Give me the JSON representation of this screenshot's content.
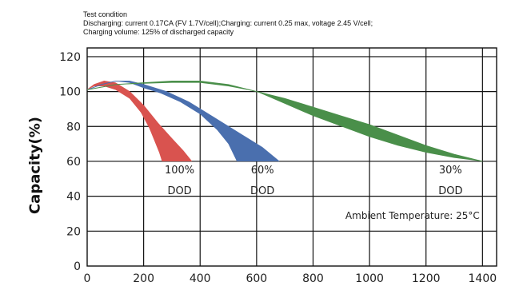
{
  "test_condition": {
    "title": "Test condition",
    "line1": "Discharging: current 0.17CA (FV 1.7V/cell);Charging: current 0.25 max, voltage 2.45 V/cell;",
    "line2": "Charging volume: 125% of discharged capacity"
  },
  "chart_data": {
    "type": "area",
    "ylabel": "Capacity(%)",
    "xlabel": "",
    "xlim": [
      0,
      1450
    ],
    "ylim": [
      0,
      125
    ],
    "xticks": [
      0,
      200,
      400,
      600,
      800,
      1000,
      1200,
      1400
    ],
    "yticks": [
      0,
      20,
      40,
      60,
      80,
      100,
      120
    ],
    "grid": true,
    "annotation": "Ambient Temperature: 25°C",
    "series": [
      {
        "name": "100% DOD",
        "label_top": "100%",
        "label_bottom": "DOD",
        "color": "#d9534f",
        "upper": [
          [
            0,
            101
          ],
          [
            25,
            104
          ],
          [
            60,
            106
          ],
          [
            100,
            105
          ],
          [
            150,
            100
          ],
          [
            200,
            92
          ],
          [
            250,
            82
          ],
          [
            300,
            73
          ],
          [
            340,
            66
          ],
          [
            370,
            60
          ]
        ],
        "lower": [
          [
            0,
            101
          ],
          [
            25,
            103
          ],
          [
            60,
            103
          ],
          [
            100,
            101
          ],
          [
            150,
            96
          ],
          [
            190,
            88
          ],
          [
            220,
            79
          ],
          [
            240,
            71
          ],
          [
            255,
            65
          ],
          [
            265,
            60
          ]
        ]
      },
      {
        "name": "60% DOD",
        "label_top": "60%",
        "label_bottom": "DOD",
        "color": "#4a6fae",
        "upper": [
          [
            0,
            101
          ],
          [
            50,
            104
          ],
          [
            100,
            106
          ],
          [
            150,
            106
          ],
          [
            200,
            104
          ],
          [
            280,
            100
          ],
          [
            360,
            94
          ],
          [
            450,
            85
          ],
          [
            540,
            76
          ],
          [
            620,
            68
          ],
          [
            680,
            60
          ]
        ],
        "lower": [
          [
            0,
            101
          ],
          [
            50,
            104
          ],
          [
            100,
            106
          ],
          [
            150,
            105
          ],
          [
            200,
            102
          ],
          [
            260,
            99
          ],
          [
            330,
            94
          ],
          [
            400,
            87
          ],
          [
            460,
            78
          ],
          [
            500,
            70
          ],
          [
            530,
            60
          ]
        ]
      },
      {
        "name": "30% DOD",
        "label_top": "30%",
        "label_bottom": "DOD",
        "color": "#4a8f4a",
        "upper": [
          [
            0,
            101
          ],
          [
            100,
            104
          ],
          [
            200,
            105
          ],
          [
            300,
            106
          ],
          [
            400,
            106
          ],
          [
            500,
            104
          ],
          [
            600,
            100
          ],
          [
            700,
            96
          ],
          [
            800,
            91
          ],
          [
            900,
            86
          ],
          [
            1000,
            81
          ],
          [
            1100,
            75
          ],
          [
            1200,
            69
          ],
          [
            1300,
            64
          ],
          [
            1400,
            60
          ]
        ],
        "lower": [
          [
            0,
            101
          ],
          [
            100,
            104
          ],
          [
            200,
            104.5
          ],
          [
            300,
            105
          ],
          [
            400,
            105
          ],
          [
            500,
            103
          ],
          [
            600,
            100
          ],
          [
            700,
            93
          ],
          [
            800,
            86
          ],
          [
            900,
            80
          ],
          [
            1000,
            74
          ],
          [
            1100,
            69
          ],
          [
            1200,
            65
          ],
          [
            1300,
            62
          ],
          [
            1400,
            60
          ]
        ]
      }
    ]
  }
}
